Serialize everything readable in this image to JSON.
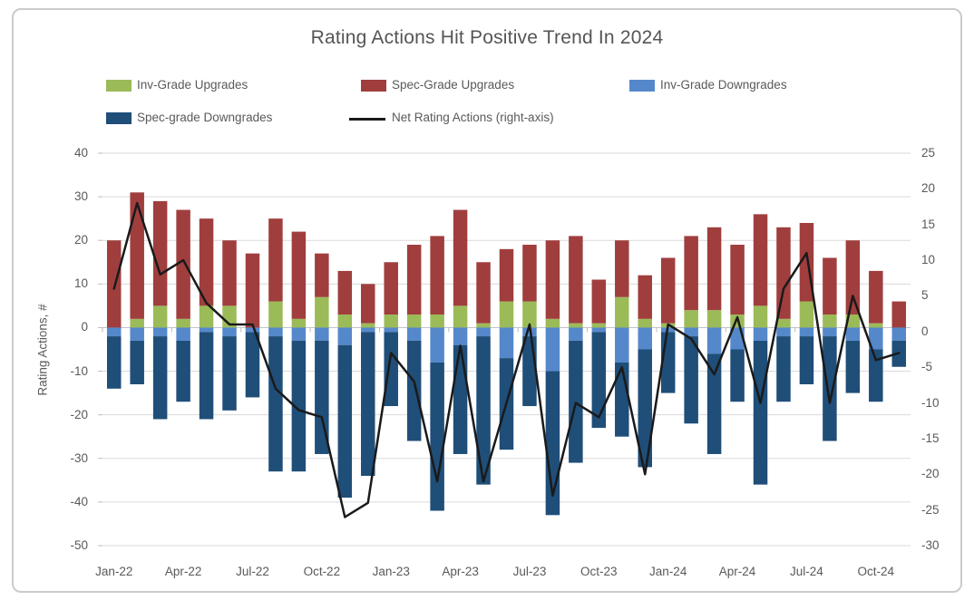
{
  "chart_data": {
    "type": "combo-stacked-bar-line",
    "title": "Rating Actions Hit Positive Trend In 2024",
    "ylabel_left": "Rating Actions, #",
    "left_axis": {
      "min": -50,
      "max": 40,
      "ticks": [
        40,
        30,
        20,
        10,
        0,
        -10,
        -20,
        -30,
        -40,
        -50
      ]
    },
    "right_axis": {
      "min": -30,
      "max": 25,
      "ticks": [
        25,
        20,
        15,
        10,
        5,
        0,
        -5,
        -10,
        -15,
        -20,
        -25,
        -30
      ]
    },
    "x_tick_labels": [
      "Jan-22",
      "Apr-22",
      "Jul-22",
      "Oct-22",
      "Jan-23",
      "Apr-23",
      "Jul-23",
      "Oct-23",
      "Jan-24",
      "Apr-24",
      "Jul-24",
      "Oct-24"
    ],
    "months": [
      "Jan-22",
      "Feb-22",
      "Mar-22",
      "Apr-22",
      "May-22",
      "Jun-22",
      "Jul-22",
      "Aug-22",
      "Sep-22",
      "Oct-22",
      "Nov-22",
      "Dec-22",
      "Jan-23",
      "Feb-23",
      "Mar-23",
      "Apr-23",
      "May-23",
      "Jun-23",
      "Jul-23",
      "Aug-23",
      "Sep-23",
      "Oct-23",
      "Nov-23",
      "Dec-23",
      "Jan-24",
      "Feb-24",
      "Mar-24",
      "Apr-24",
      "May-24",
      "Jun-24",
      "Jul-24",
      "Aug-24",
      "Sep-24",
      "Oct-24",
      "Nov-24"
    ],
    "grid": true,
    "legend_position": "top",
    "series": [
      {
        "name": "Inv-Grade Upgrades",
        "color": "#9BBB59",
        "stack": "up",
        "values": [
          0,
          2,
          5,
          2,
          5,
          5,
          0,
          6,
          2,
          7,
          3,
          1,
          3,
          3,
          3,
          5,
          1,
          6,
          6,
          2,
          1,
          1,
          7,
          2,
          1,
          4,
          4,
          3,
          5,
          2,
          6,
          3,
          3,
          1,
          0
        ]
      },
      {
        "name": "Spec-Grade Upgrades",
        "color": "#A03E3E",
        "stack": "up",
        "values": [
          20,
          29,
          24,
          25,
          20,
          15,
          17,
          19,
          20,
          10,
          10,
          9,
          12,
          16,
          18,
          22,
          14,
          12,
          13,
          18,
          20,
          10,
          13,
          10,
          15,
          17,
          19,
          16,
          21,
          21,
          18,
          13,
          17,
          12,
          6
        ]
      },
      {
        "name": "Inv-Grade Downgrades",
        "color": "#5588CB",
        "stack": "down",
        "values": [
          -2,
          -3,
          -2,
          -3,
          -1,
          -2,
          -1,
          -2,
          -3,
          -3,
          -4,
          -1,
          -1,
          -3,
          -8,
          -4,
          -2,
          -7,
          -2,
          -10,
          -3,
          -1,
          -8,
          -5,
          -1,
          -2,
          -6,
          -5,
          -3,
          -2,
          -2,
          -2,
          -3,
          -5,
          -3
        ]
      },
      {
        "name": "Spec-grade Downgrades",
        "color": "#1F4E79",
        "stack": "down",
        "values": [
          -12,
          -10,
          -19,
          -14,
          -20,
          -17,
          -15,
          -31,
          -30,
          -26,
          -35,
          -33,
          -17,
          -23,
          -34,
          -25,
          -34,
          -21,
          -16,
          -33,
          -28,
          -22,
          -17,
          -27,
          -14,
          -20,
          -23,
          -12,
          -33,
          -15,
          -11,
          -24,
          -12,
          -12,
          -6
        ]
      },
      {
        "name": "Net Rating Actions (right-axis)",
        "color": "#1A1A1A",
        "axis": "right",
        "type": "line",
        "values": [
          6,
          18,
          8,
          10,
          4,
          1,
          1,
          -8,
          -11,
          -12,
          -26,
          -24,
          -3,
          -7,
          -21,
          -2,
          -21,
          -10,
          1,
          -23,
          -10,
          -12,
          -5,
          -20,
          1,
          -1,
          -6,
          2,
          -10,
          6,
          11,
          -10,
          5,
          -4,
          -3
        ]
      }
    ]
  },
  "legend": [
    {
      "label": "Inv-Grade Upgrades",
      "color": "#9BBB59",
      "type": "swatch"
    },
    {
      "label": "Spec-Grade Upgrades",
      "color": "#A03E3E",
      "type": "swatch"
    },
    {
      "label": "Inv-Grade Downgrades",
      "color": "#5588CB",
      "type": "swatch"
    },
    {
      "label": "Spec-grade Downgrades",
      "color": "#1F4E79",
      "type": "swatch"
    },
    {
      "label": "Net Rating Actions (right-axis)",
      "color": "#1A1A1A",
      "type": "line"
    }
  ],
  "colors": {
    "inv_grade_upgrades": "#9BBB59",
    "spec_grade_upgrades": "#A03E3E",
    "inv_grade_downgrades": "#5588CB",
    "spec_grade_downgrades": "#1F4E79",
    "net_line": "#1A1A1A",
    "gridline": "#DADADA",
    "axis_text": "#595959",
    "card_border": "#CBCBCB"
  }
}
